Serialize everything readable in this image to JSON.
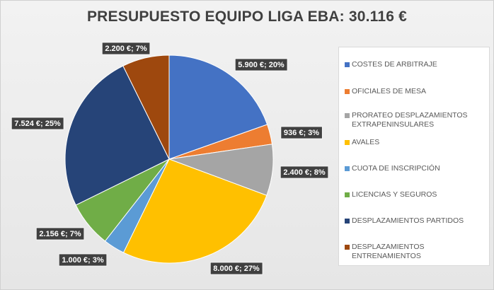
{
  "chart_data": {
    "type": "pie",
    "title": "PRESUPUESTO EQUIPO LIGA EBA: 30.116 €",
    "slices": [
      {
        "name": "COSTES DE ARBITRAJE",
        "value": 5900,
        "label": "5.900 €; 20%",
        "color": "#4472c4"
      },
      {
        "name": "OFICIALES DE MESA",
        "value": 936,
        "label": "936 €; 3%",
        "color": "#ed7d31"
      },
      {
        "name": "PRORATEO DESPLAZAMIENTOS EXTRAPENINSULARES",
        "value": 2400,
        "label": "2.400 €; 8%",
        "color": "#a5a5a5"
      },
      {
        "name": "AVALES",
        "value": 8000,
        "label": "8.000 €; 27%",
        "color": "#ffc000"
      },
      {
        "name": "CUOTA DE INSCRIPCIÓN",
        "value": 1000,
        "label": "1.000 €; 3%",
        "color": "#5b9bd5"
      },
      {
        "name": "LICENCIAS Y SEGUROS",
        "value": 2156,
        "label": "2.156 €; 7%",
        "color": "#70ad47"
      },
      {
        "name": "DESPLAZAMIENTOS PARTIDOS",
        "value": 7524,
        "label": "7.524 €; 25%",
        "color": "#264478"
      },
      {
        "name": "DESPLAZAMIENTOS ENTRENAMIENTOS",
        "value": 2200,
        "label": "2.200 €; 7%",
        "color": "#9e480e"
      }
    ],
    "legend_position": "right"
  }
}
